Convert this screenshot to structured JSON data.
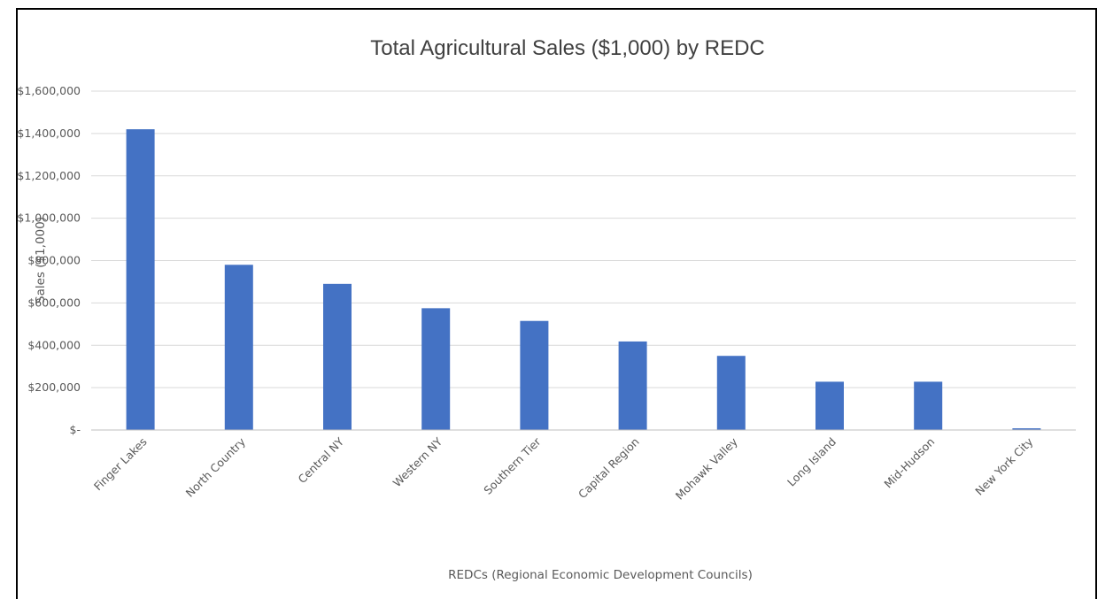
{
  "chart_data": {
    "type": "bar",
    "title": "Total Agricultural Sales ($1,000) by REDC",
    "xlabel": "REDCs (Regional Economic Development Councils)",
    "ylabel": "Sales ($1,000)",
    "ylim": [
      0,
      1600000
    ],
    "yticks": [
      0,
      200000,
      400000,
      600000,
      800000,
      1000000,
      1200000,
      1400000,
      1600000
    ],
    "ytick_labels": [
      "$-",
      "$200,000",
      "$400,000",
      "$600,000",
      "$800,000",
      "$1,000,000",
      "$1,200,000",
      "$1,400,000",
      "$1,600,000"
    ],
    "categories": [
      "Finger Lakes",
      "North Country",
      "Central NY",
      "Western NY",
      "Southern Tier",
      "Capital Region",
      "Mohawk Valley",
      "Long Island",
      "Mid-Hudson",
      "New York City"
    ],
    "values": [
      1420000,
      780000,
      690000,
      575000,
      515000,
      418000,
      350000,
      228000,
      228000,
      8000
    ],
    "bar_color": "#4472c4",
    "grid": true,
    "legend": "none"
  }
}
